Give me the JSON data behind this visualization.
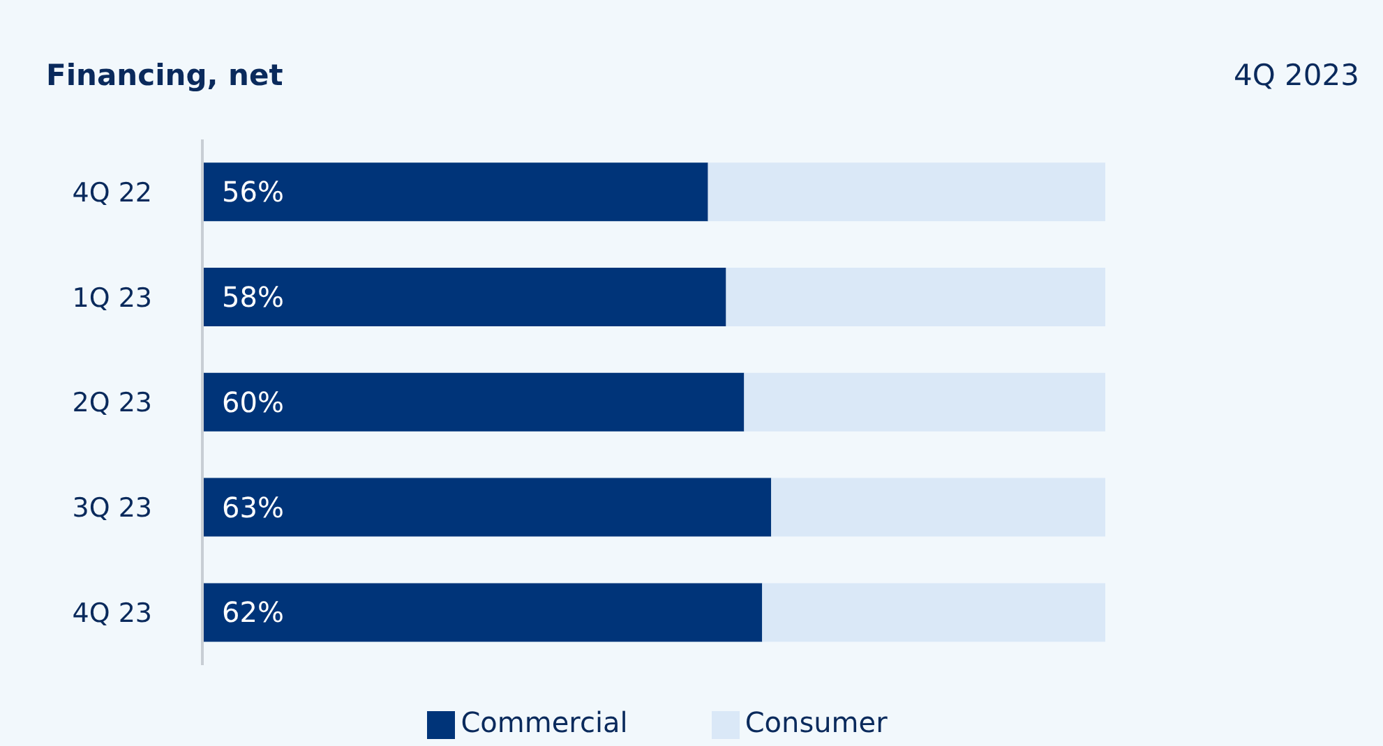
{
  "chart_data": {
    "type": "bar",
    "orientation": "horizontal",
    "stacked": true,
    "title": "Financing, net",
    "subtitle": "4Q 2023",
    "categories": [
      "4Q 22",
      "1Q 23",
      "2Q 23",
      "3Q 23",
      "4Q 23"
    ],
    "series": [
      {
        "name": "Commercial",
        "color": "#003479",
        "values": [
          56,
          58,
          60,
          63,
          62
        ],
        "value_labels": [
          "56%",
          "58%",
          "60%",
          "63%",
          "62%"
        ]
      },
      {
        "name": "Consumer",
        "color": "#dae8f7",
        "values": [
          44,
          42,
          40,
          37,
          38
        ]
      }
    ],
    "tick_labels": "y",
    "legend": "bottom"
  }
}
